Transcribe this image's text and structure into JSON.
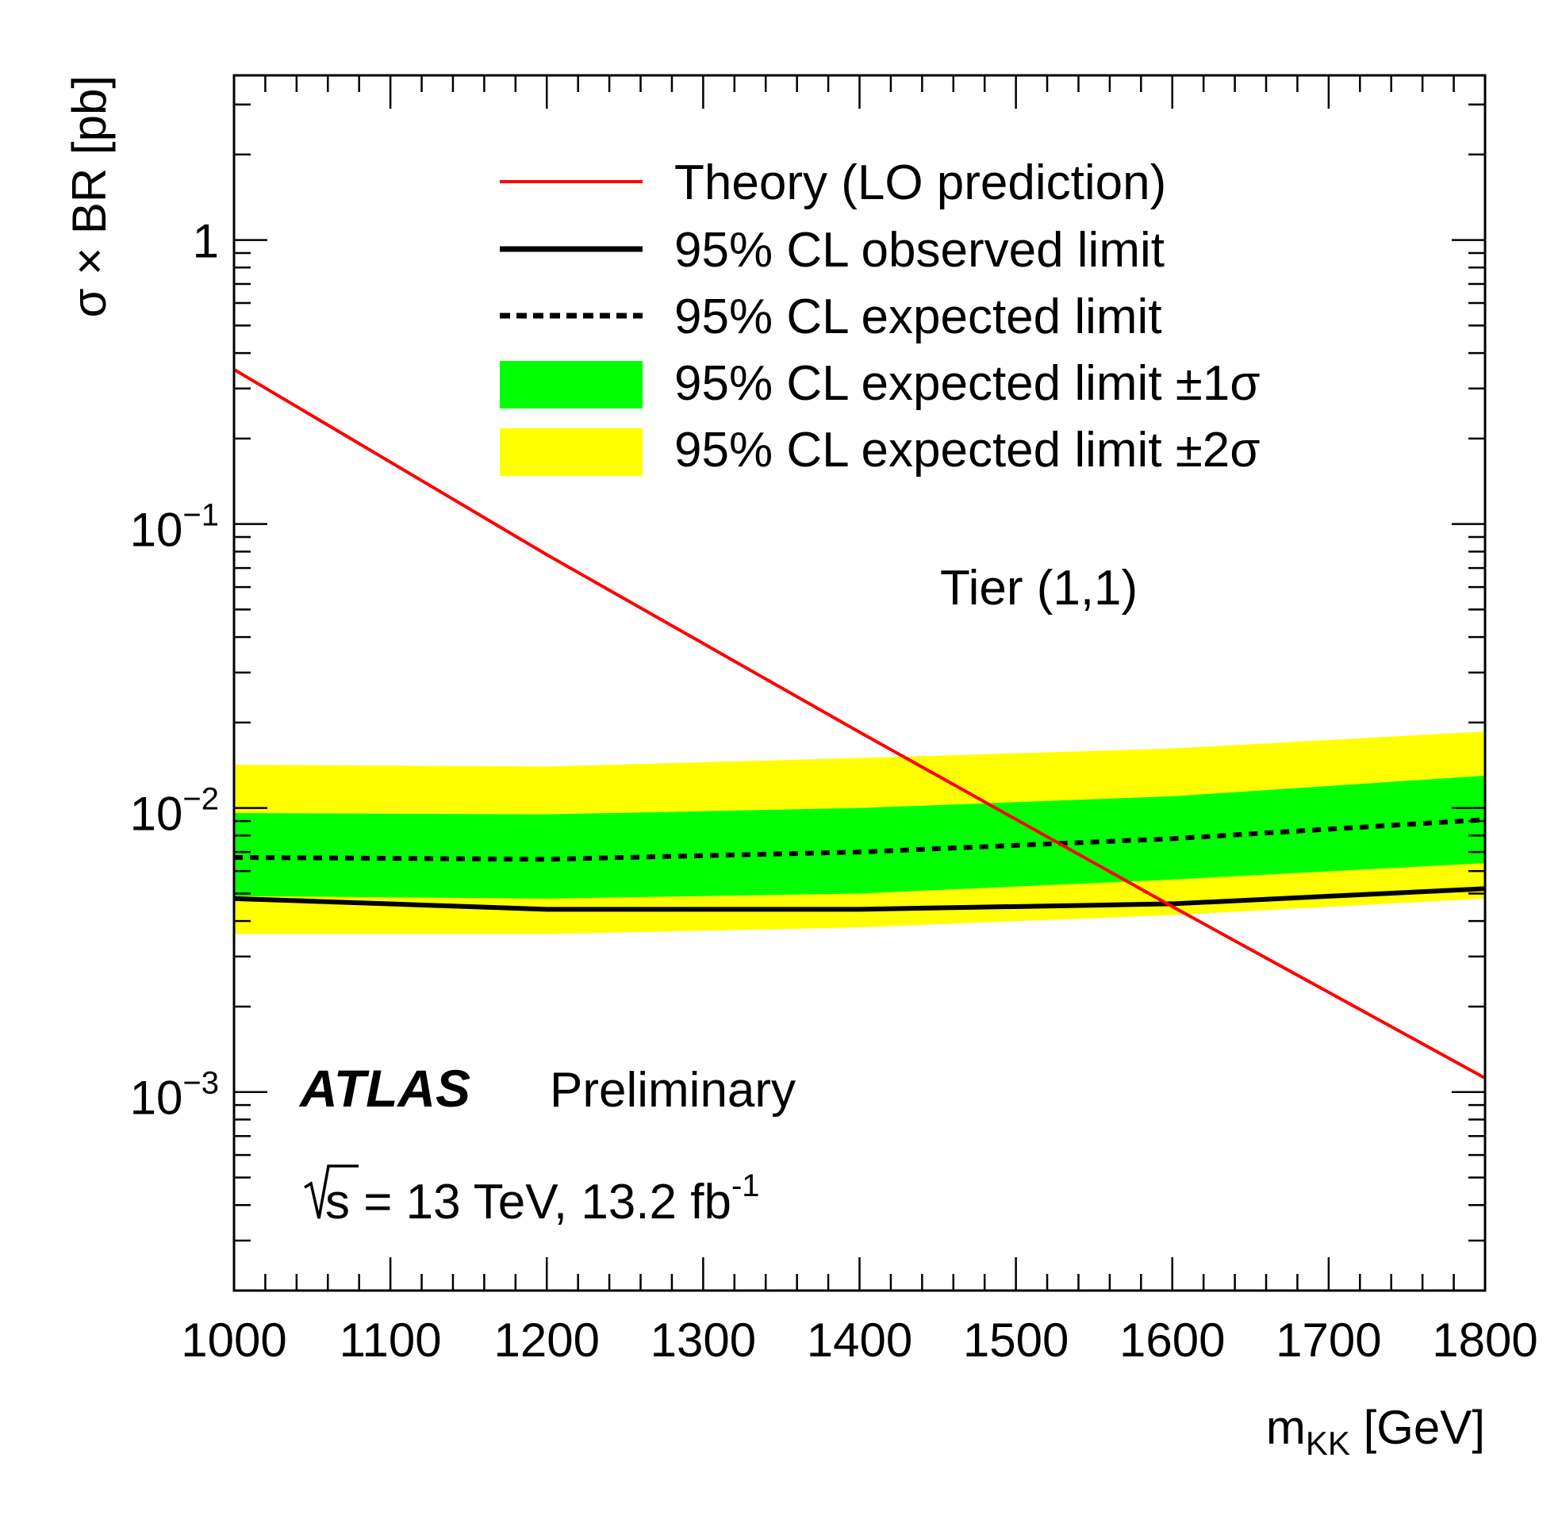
{
  "chart_data": {
    "type": "line",
    "x_axis": {
      "label": "m",
      "label_sub": "KK",
      "label_unit": " [GeV]",
      "range": [
        1000,
        1800
      ],
      "ticks": [
        1000,
        1100,
        1200,
        1300,
        1400,
        1500,
        1600,
        1700,
        1800
      ],
      "tick_labels": [
        "1000",
        "1100",
        "1200",
        "1300",
        "1400",
        "1500",
        "1600",
        "1700",
        "1800"
      ]
    },
    "y_axis": {
      "label": "σ × BR [pb]",
      "scale": "log",
      "range": [
        0.0002,
        3.8
      ],
      "major_ticks": [
        {
          "value": 1,
          "base": "1",
          "exp": ""
        },
        {
          "value": 0.1,
          "base": "10",
          "exp": "−1"
        },
        {
          "value": 0.01,
          "base": "10",
          "exp": "−2"
        },
        {
          "value": 0.001,
          "base": "10",
          "exp": "−3"
        }
      ]
    },
    "series": [
      {
        "name": "Theory (LO prediction)",
        "style": "line",
        "color": "#ff0000",
        "x": [
          1000,
          1200,
          1400,
          1600,
          1800
        ],
        "y": [
          0.35,
          0.078,
          0.0185,
          0.0045,
          0.00112
        ]
      },
      {
        "name": "95% CL observed limit",
        "style": "line",
        "color": "#000000",
        "x": [
          1000,
          1200,
          1400,
          1600,
          1800
        ],
        "y": [
          0.0048,
          0.0044,
          0.0044,
          0.0046,
          0.0052
        ]
      },
      {
        "name": "95% CL expected limit",
        "style": "dashed",
        "color": "#000000",
        "x": [
          1000,
          1200,
          1400,
          1600,
          1800
        ],
        "y": [
          0.0067,
          0.0066,
          0.007,
          0.0078,
          0.0091
        ]
      },
      {
        "name": "95% CL expected limit ±1σ",
        "style": "band",
        "color": "#00ff00",
        "x": [
          1000,
          1200,
          1400,
          1600,
          1800
        ],
        "low": [
          0.0049,
          0.0048,
          0.005,
          0.0056,
          0.0064
        ],
        "high": [
          0.0096,
          0.0095,
          0.01,
          0.011,
          0.013
        ]
      },
      {
        "name": "95% CL expected limit ±2σ",
        "style": "band",
        "color": "#ffff00",
        "x": [
          1000,
          1200,
          1400,
          1600,
          1800
        ],
        "low": [
          0.0036,
          0.0036,
          0.0038,
          0.0042,
          0.0048
        ],
        "high": [
          0.0142,
          0.014,
          0.015,
          0.0162,
          0.0186
        ]
      }
    ],
    "annotations": {
      "tier": "Tier (1,1)",
      "experiment": "ATLAS",
      "status": "Preliminary",
      "sqrt_s": "s",
      "energy_lumi": " = 13 TeV, 13.2 fb",
      "lumi_exp": "-1"
    },
    "legend_position": "top-right"
  }
}
